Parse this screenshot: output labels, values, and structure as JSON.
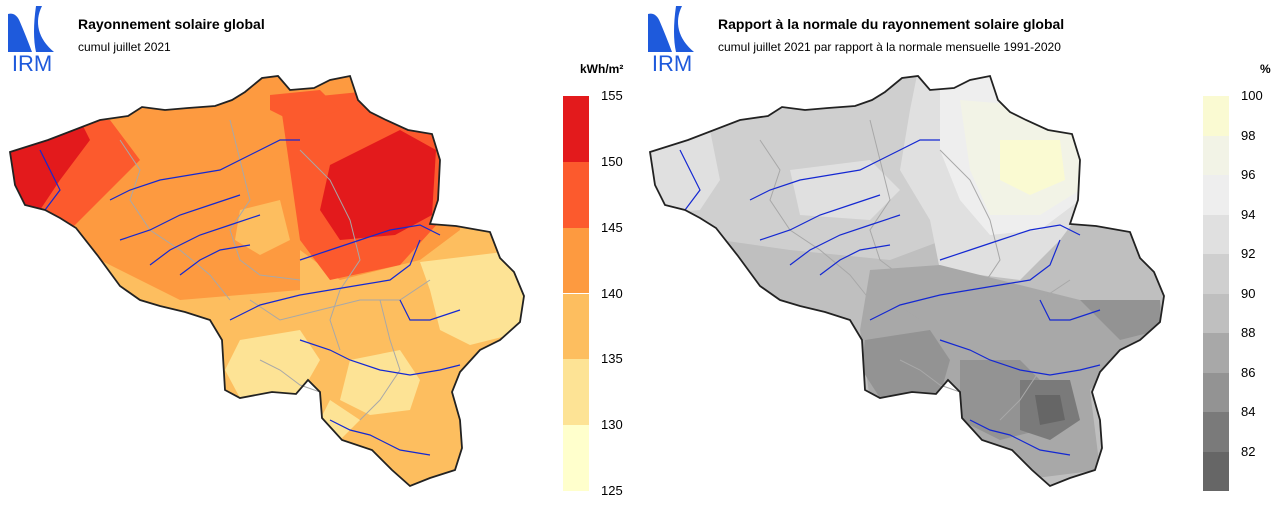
{
  "left_panel": {
    "logo": {
      "text": "IRM",
      "icon": "irm-logo-icon",
      "color": "#1e5adc"
    },
    "title": "Rayonnement solaire global",
    "subtitle": "cumul juillet 2021",
    "unit": "kWh/m²",
    "legend": {
      "ticks": [
        "155",
        "150",
        "145",
        "140",
        "135",
        "130",
        "125"
      ],
      "colors": [
        "#e31a1c",
        "#fc5a2d",
        "#fd9a40",
        "#fdbe5f",
        "#fde395",
        "#ffffcc"
      ]
    }
  },
  "right_panel": {
    "logo": {
      "text": "IRM",
      "icon": "irm-logo-icon",
      "color": "#1e5adc"
    },
    "title": "Rapport à la normale du rayonnement solaire global",
    "subtitle": "cumul juillet 2021 par rapport à la normale mensuelle 1991-2020",
    "unit": "%",
    "legend": {
      "ticks": [
        "100",
        "98",
        "96",
        "94",
        "92",
        "90",
        "88",
        "86",
        "84",
        "82"
      ],
      "colors": [
        "#fafad2",
        "#f2f3e6",
        "#eeeeee",
        "#e0e0e0",
        "#cfcfcf",
        "#bfbfbf",
        "#a8a8a8",
        "#939393",
        "#7a7a7a",
        "#666666"
      ]
    }
  }
}
